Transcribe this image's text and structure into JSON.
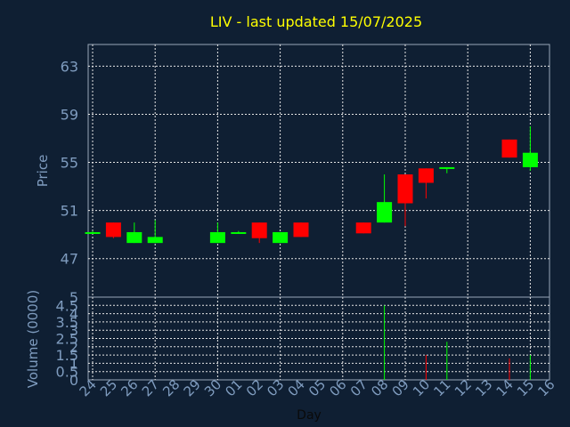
{
  "chart_data": {
    "type": "candlestick",
    "title": "LIV - last updated 15/07/2025",
    "xlabel": "Day",
    "price_panel": {
      "ylabel": "Price",
      "ylim": [
        43.8,
        64.8
      ],
      "yticks": [
        47,
        51,
        55,
        59,
        63
      ],
      "grid": true
    },
    "volume_panel": {
      "ylabel": "Volume (0000)",
      "ylim": [
        0,
        5
      ],
      "yticks": [
        0,
        0.5,
        1,
        1.5,
        2,
        2.5,
        3,
        3.5,
        4,
        4.5,
        5
      ],
      "ytick_labels": [
        "0",
        "0.5",
        "1",
        "1.5",
        "2",
        "2.5",
        "3",
        "3.5",
        "4",
        "4.5",
        "5"
      ],
      "grid": true
    },
    "x_tick_labels": [
      "24",
      "25",
      "26",
      "27",
      "28",
      "29",
      "30",
      "01",
      "02",
      "03",
      "04",
      "05",
      "06",
      "07",
      "08",
      "09",
      "10",
      "11",
      "12",
      "13",
      "14",
      "15",
      "16"
    ],
    "candles": [
      {
        "day": "24",
        "open": 49.2,
        "high": 49.3,
        "low": 49.1,
        "close": 49.2,
        "volume": 0
      },
      {
        "day": "25",
        "open": 50.0,
        "high": 50.0,
        "low": 48.7,
        "close": 48.8,
        "volume": 0
      },
      {
        "day": "26",
        "open": 48.3,
        "high": 50.0,
        "low": 48.3,
        "close": 49.2,
        "volume": 0
      },
      {
        "day": "27",
        "open": 48.3,
        "high": 50.2,
        "low": 48.3,
        "close": 48.8,
        "volume": 0
      },
      {
        "day": "30",
        "open": 48.3,
        "high": 50.0,
        "low": 48.3,
        "close": 49.2,
        "volume": 0
      },
      {
        "day": "01",
        "open": 49.2,
        "high": 49.3,
        "low": 49.1,
        "close": 49.2,
        "volume": 0
      },
      {
        "day": "02",
        "open": 50.0,
        "high": 50.0,
        "low": 48.3,
        "close": 48.7,
        "volume": 0
      },
      {
        "day": "03",
        "open": 48.3,
        "high": 49.2,
        "low": 48.3,
        "close": 49.2,
        "volume": 0
      },
      {
        "day": "04",
        "open": 50.0,
        "high": 50.0,
        "low": 48.8,
        "close": 48.8,
        "volume": 0
      },
      {
        "day": "07",
        "open": 50.0,
        "high": 50.0,
        "low": 49.1,
        "close": 49.1,
        "volume": 0
      },
      {
        "day": "08",
        "open": 50.0,
        "high": 54.0,
        "low": 50.0,
        "close": 51.7,
        "volume": 4.5
      },
      {
        "day": "09",
        "open": 54.0,
        "high": 54.0,
        "low": 49.7,
        "close": 51.6,
        "volume": 0
      },
      {
        "day": "10",
        "open": 54.5,
        "high": 54.5,
        "low": 52.0,
        "close": 53.3,
        "volume": 1.5
      },
      {
        "day": "11",
        "open": 54.5,
        "high": 54.6,
        "low": 54.1,
        "close": 54.6,
        "volume": 2.3
      },
      {
        "day": "14",
        "open": 56.9,
        "high": 56.9,
        "low": 55.4,
        "close": 55.4,
        "volume": 1.3
      },
      {
        "day": "15",
        "open": 54.6,
        "high": 58.0,
        "low": 54.3,
        "close": 55.8,
        "volume": 1.5
      }
    ]
  }
}
